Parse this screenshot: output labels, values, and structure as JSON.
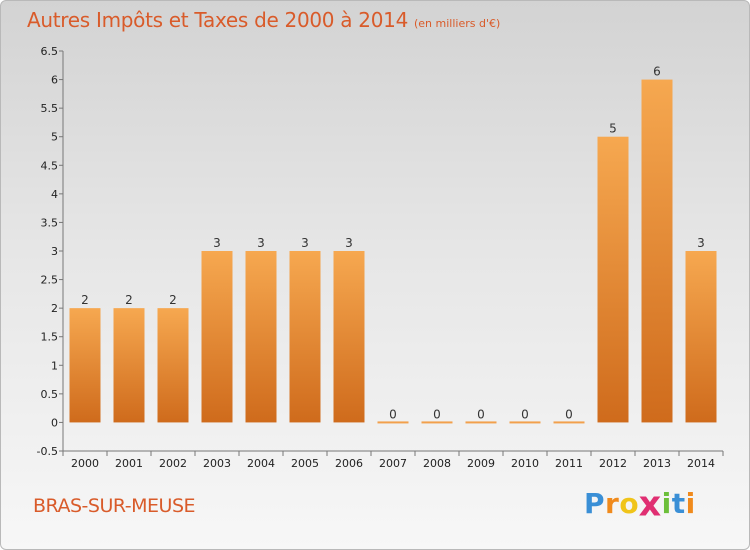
{
  "header": {
    "title": "Autres Impôts et Taxes de 2000 à 2014",
    "subtitle": "(en milliers d'€)"
  },
  "footer": {
    "commune": "BRAS-SUR-MEUSE",
    "brand_letters": [
      "P",
      "r",
      "o",
      "x",
      "i",
      "t",
      "i"
    ]
  },
  "colors": {
    "title": "#d95b2a",
    "bar_light": "#f6a850",
    "bar_dark": "#cf6b1c",
    "brand": [
      "#3a8fd6",
      "#f08a1c",
      "#f0c419",
      "#e02f72",
      "#6cbf3a",
      "#3a8fd6",
      "#f08a1c"
    ]
  },
  "chart_data": {
    "type": "bar",
    "categories": [
      "2000",
      "2001",
      "2002",
      "2003",
      "2004",
      "2005",
      "2006",
      "2007",
      "2008",
      "2009",
      "2010",
      "2011",
      "2012",
      "2013",
      "2014"
    ],
    "values": [
      2,
      2,
      2,
      3,
      3,
      3,
      3,
      0,
      0,
      0,
      0,
      0,
      5,
      6,
      3
    ],
    "data_labels": [
      "2",
      "2",
      "2",
      "3",
      "3",
      "3",
      "3",
      "0",
      "0",
      "0",
      "0",
      "0",
      "5",
      "6",
      "3"
    ],
    "title": "Autres Impôts et Taxes de 2000 à 2014",
    "xlabel": "",
    "ylabel": "",
    "ylim": [
      -0.5,
      6.5
    ],
    "yticks": [
      "-0.5",
      "0",
      "0.5",
      "1",
      "1.5",
      "2",
      "2.5",
      "3",
      "3.5",
      "4",
      "4.5",
      "5",
      "5.5",
      "6",
      "6.5"
    ],
    "grid": false,
    "legend": "none"
  }
}
